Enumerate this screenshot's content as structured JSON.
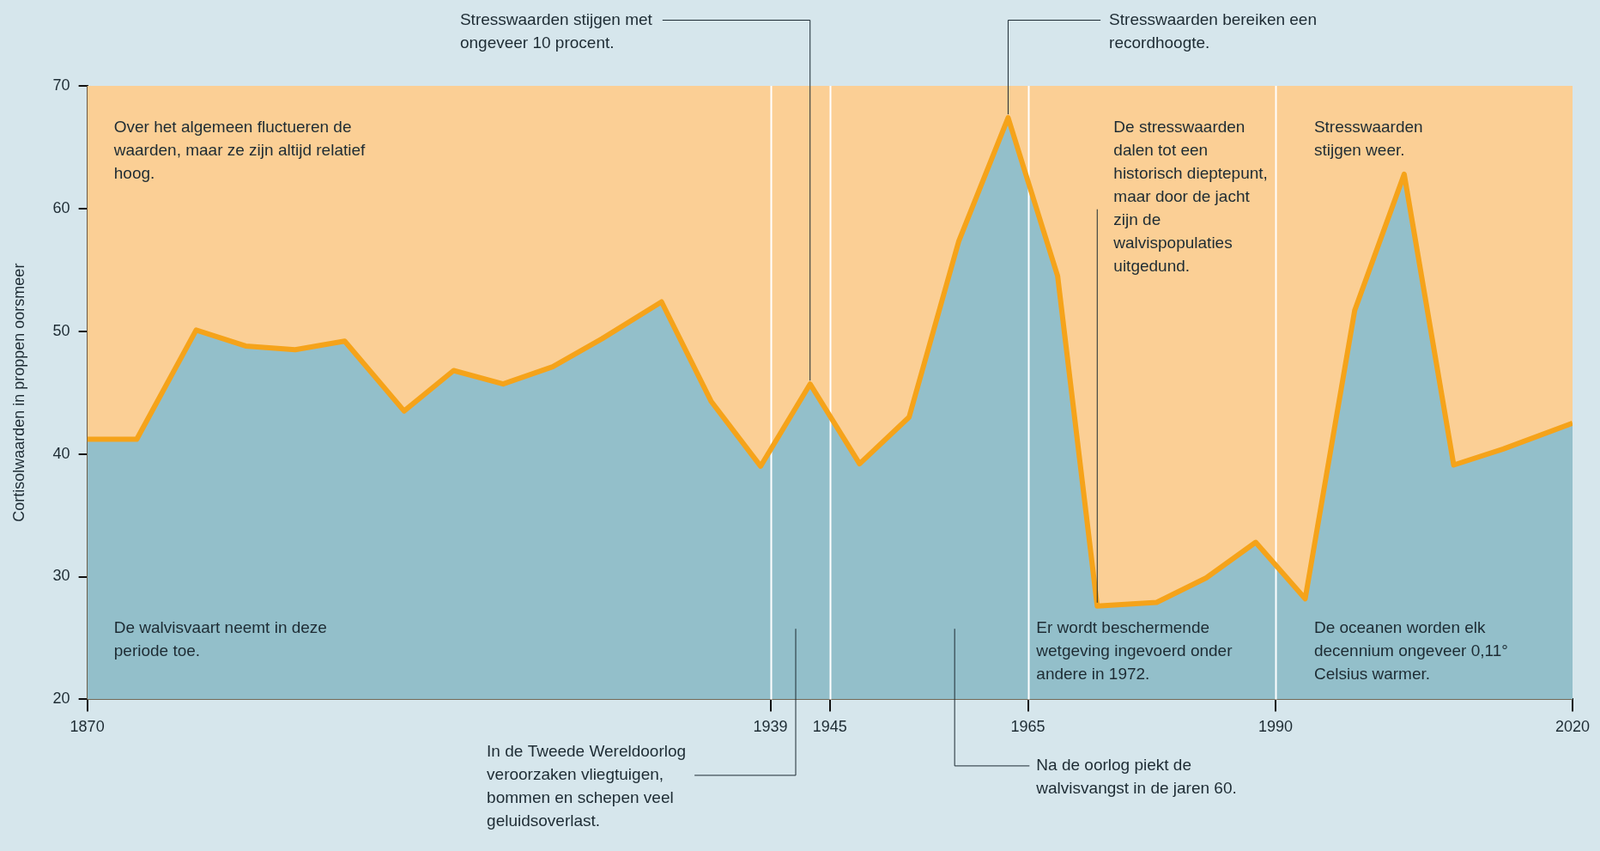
{
  "chart_data": {
    "type": "line",
    "y_label": "Cortisolwaarden in proppen oorsmeer",
    "x": [
      1870,
      1875,
      1881,
      1886,
      1891,
      1896,
      1902,
      1907,
      1912,
      1917,
      1922,
      1928,
      1933,
      1938,
      1943,
      1948,
      1953,
      1958,
      1963,
      1968,
      1972,
      1978,
      1983,
      1988,
      1993,
      1998,
      2003,
      2008,
      2013,
      2020
    ],
    "values": [
      41.2,
      41.2,
      50.1,
      48.8,
      48.5,
      49.2,
      43.5,
      46.8,
      45.7,
      47.1,
      49.4,
      52.4,
      44.3,
      39.0,
      45.7,
      39.2,
      43.0,
      57.3,
      67.4,
      54.5,
      27.6,
      27.9,
      29.9,
      32.8,
      28.2,
      51.7,
      62.8,
      39.1,
      40.4,
      42.5
    ],
    "color": "#f5a31a",
    "xlim": [
      1870,
      2020
    ],
    "xticks": [
      1870,
      1939,
      1945,
      1965,
      1990,
      2020
    ],
    "ylim": [
      20,
      70
    ],
    "yticks": [
      20,
      30,
      40,
      50,
      60,
      70
    ],
    "grid": "x",
    "annotations": [
      "Over het algemeen fluctueren de waarden, maar ze zijn altijd relatief hoog.",
      "De walvisvaart neemt in deze periode toe.",
      "Stresswaarden stijgen met ongeveer 10 procent.",
      "Stresswaarden bereiken een recordhoogte.",
      "De stresswaarden dalen tot een historisch dieptepunt, maar door de jacht zijn de walvispopulaties uitgedund.",
      "Stresswaarden stijgen weer.",
      "Er wordt beschermende wetgeving ingevoerd onder andere in 1972.",
      "De oceanen worden elk decennium ongeveer 0,11° Celsius warmer.",
      "In de Tweede Wereldoorlog veroorzaken vliegtuigen, bommen en schepen veel geluidsoverlast.",
      "Na de oorlog piekt de walvisvangst in de jaren 60."
    ]
  }
}
